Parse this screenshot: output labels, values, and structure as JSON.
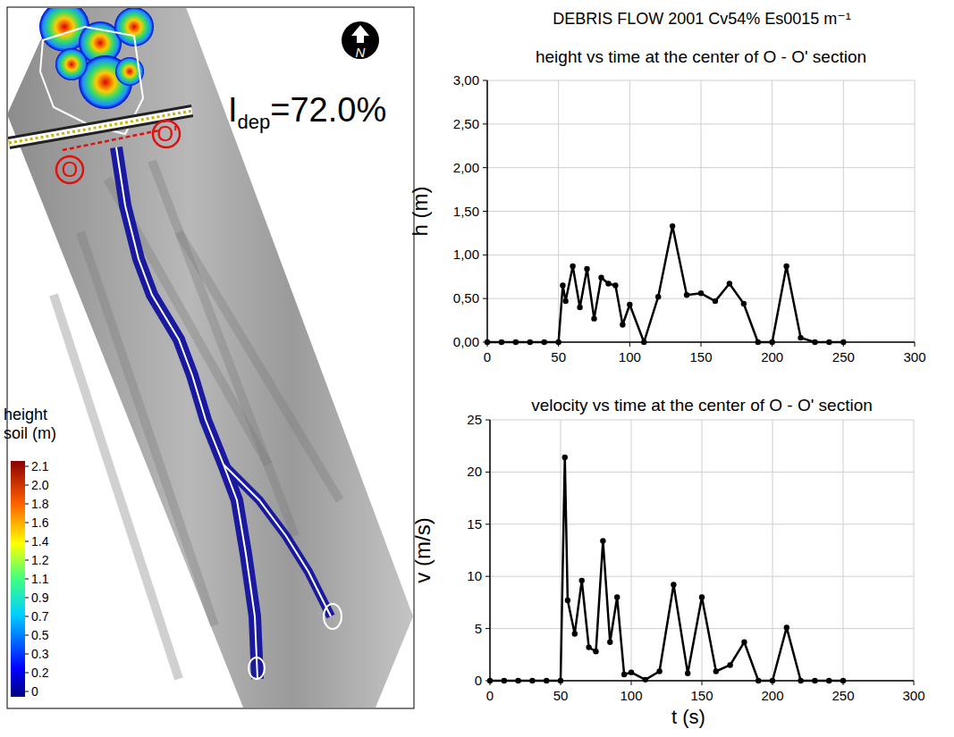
{
  "title": "DEBRIS FLOW 2001  Cv54% Es0015 m⁻¹",
  "map": {
    "index_symbol": "I",
    "index_subscript": "dep",
    "index_text": "=72.0%",
    "section_labels": [
      "O",
      "O'"
    ],
    "north_label": "N",
    "colorbar": {
      "title": "height soil (m)",
      "ticks": [
        0,
        0.2,
        0.3,
        0.5,
        0.7,
        0.9,
        1.1,
        1.2,
        1.4,
        1.6,
        1.8,
        {
          "value": 2,
          "label": "2.0"
        },
        2.1
      ]
    }
  },
  "chart_data": [
    {
      "type": "line",
      "title": "height vs time at the center of O - O' section",
      "ylabel": "h (m)",
      "x": [
        0,
        10,
        20,
        30,
        40,
        50,
        53,
        55,
        60,
        65,
        70,
        75,
        80,
        85,
        90,
        95,
        100,
        110,
        120,
        130,
        140,
        150,
        160,
        170,
        180,
        190,
        200,
        210,
        220,
        230,
        240,
        250
      ],
      "values": [
        0,
        0,
        0,
        0,
        0,
        0,
        0.65,
        0.47,
        0.87,
        0.4,
        0.84,
        0.27,
        0.74,
        0.67,
        0.65,
        0.2,
        0.43,
        0,
        0.52,
        1.33,
        0.54,
        0.56,
        0.47,
        0.67,
        0.44,
        0,
        0,
        0.87,
        0.05,
        0,
        0,
        0
      ],
      "color": "#000000",
      "marker": "circle",
      "xlim": [
        0,
        300
      ],
      "xticks": [
        0,
        50,
        100,
        150,
        200,
        250,
        300
      ],
      "ylim": [
        0,
        3
      ],
      "yticks": [
        {
          "value": 0,
          "label": "0,00"
        },
        {
          "value": 0.5,
          "label": "0,50"
        },
        {
          "value": 1,
          "label": "1,00"
        },
        {
          "value": 1.5,
          "label": "1,50"
        },
        {
          "value": 2,
          "label": "2,00"
        },
        {
          "value": 2.5,
          "label": "2,50"
        },
        {
          "value": 3,
          "label": "3,00"
        }
      ],
      "grid": true
    },
    {
      "type": "line",
      "title": "velocity vs time at the center of O - O' section",
      "ylabel": "v (m/s)",
      "xlabel": "t (s)",
      "x": [
        0,
        10,
        20,
        30,
        40,
        50,
        53,
        55,
        60,
        65,
        70,
        75,
        80,
        85,
        90,
        95,
        100,
        110,
        120,
        130,
        140,
        150,
        160,
        170,
        180,
        190,
        200,
        210,
        220,
        230,
        240,
        250
      ],
      "values": [
        0,
        0,
        0,
        0,
        0,
        0,
        21.4,
        7.7,
        4.5,
        9.6,
        3.2,
        2.8,
        13.4,
        3.7,
        8.0,
        0.6,
        0.8,
        0.1,
        0.9,
        9.2,
        0.7,
        8.0,
        0.9,
        1.5,
        3.7,
        0,
        0,
        5.1,
        0,
        0,
        0,
        0
      ],
      "color": "#000000",
      "marker": "circle",
      "xlim": [
        0,
        300
      ],
      "xticks": [
        0,
        50,
        100,
        150,
        200,
        250,
        300
      ],
      "ylim": [
        0,
        25
      ],
      "yticks": [
        0,
        5,
        10,
        15,
        20,
        25
      ],
      "grid": true
    }
  ]
}
